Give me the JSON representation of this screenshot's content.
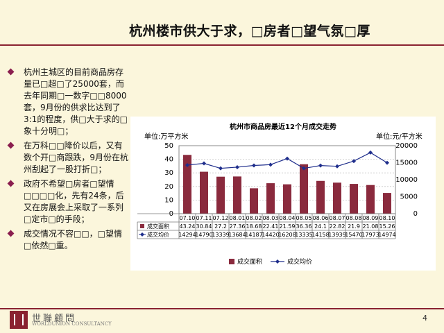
{
  "title": "杭州楼市供大于求，□房者□望气氛□厚",
  "bullets": [
    "杭州主城区的目前商品房存量已□超□了25000套，而去年同期□一数字□□8000套，9月份的供求比达到了3:1的程度，供□大于求的□象十分明□；",
    "在万科□□降价以后，又有数个开□商跟跌，9月份在杭州刮起了一股打折□；",
    "政府不希望□房者□望情□□□□化，先有24条，后又在房展会上采取了一系列□定市□的手段；",
    "成交情况不容□□，□望情□依然□重。"
  ],
  "footer": {
    "logo_cn": "世聯顧問",
    "logo_en": "WORLDUNION CONSULTANCY",
    "page_number": "4"
  },
  "chart_data": {
    "type": "bar+line",
    "title": "杭州市商品房最近12个月成交走势",
    "left_axis_label": "单位:万平方米",
    "right_axis_label": "单位:元/平方米",
    "categories": [
      "07.10",
      "07.11",
      "07.12",
      "08.01",
      "08.02",
      "08.03",
      "08.04",
      "08.05",
      "08.06",
      "08.07",
      "08.08",
      "08.09",
      "08.10"
    ],
    "series": [
      {
        "name": "成交面积",
        "type": "bar",
        "axis": "left",
        "color": "#8a2a3d",
        "values": [
          43.24,
          30.84,
          27.2,
          27.36,
          18.68,
          22.41,
          21.59,
          36.36,
          24.1,
          22.82,
          21.9,
          21.08,
          15.26
        ]
      },
      {
        "name": "成交均价",
        "type": "line",
        "axis": "right",
        "color": "#1f2e8c",
        "values": [
          14294,
          14790,
          13339,
          13684,
          14187,
          14420,
          16208,
          13335,
          14158,
          13939,
          15470,
          17973,
          14974
        ]
      }
    ],
    "left_ylim": [
      0,
      50
    ],
    "left_ticks": [
      "0",
      "10",
      "20",
      "30",
      "40",
      "50"
    ],
    "right_ylim": [
      0,
      20000
    ],
    "right_ticks": [
      "0",
      "5000",
      "10000",
      "15000",
      "20000"
    ],
    "grid": true,
    "legend_position": "bottom"
  }
}
